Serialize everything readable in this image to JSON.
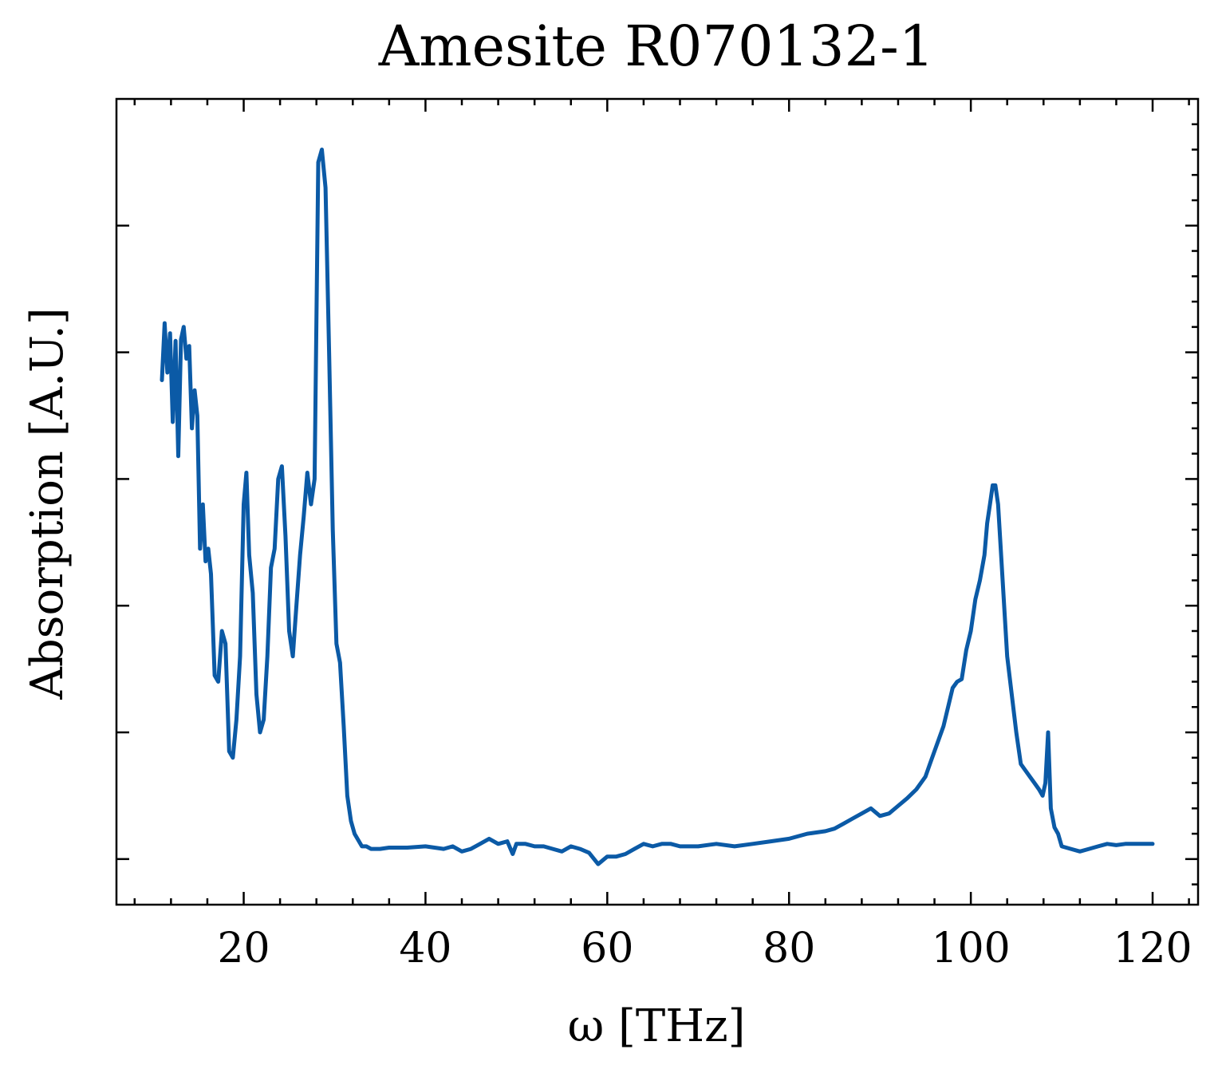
{
  "chart_data": {
    "type": "line",
    "title": "Amesite R070132-1",
    "xlabel": "ω [THz]",
    "ylabel": "Absorption [A.U.]",
    "xlim": [
      6,
      125
    ],
    "ylim": [
      -0.036,
      0.6
    ],
    "x_ticks": [
      20,
      40,
      60,
      80,
      100,
      120
    ],
    "x_tick_labels": [
      "20",
      "40",
      "60",
      "80",
      "100",
      "120"
    ],
    "x_minor_step": 4,
    "y_ticks": [
      0,
      0.1,
      0.2,
      0.3,
      0.4,
      0.5
    ],
    "y_tick_labels": [
      "",
      "",
      "",
      "",
      "",
      ""
    ],
    "y_minor_step": 0.02,
    "grid": false,
    "legend": "none",
    "colors": {
      "line": "#0b5aa6"
    },
    "series": [
      {
        "x": [
          11.0,
          11.3,
          11.6,
          11.9,
          12.2,
          12.5,
          12.8,
          13.1,
          13.4,
          13.7,
          14.0,
          14.3,
          14.6,
          14.9,
          15.2,
          15.5,
          15.8,
          16.1,
          16.4,
          16.8,
          17.2,
          17.6,
          18.0,
          18.4,
          18.8,
          19.2,
          19.6,
          20.0,
          20.3,
          20.6,
          21.0,
          21.4,
          21.8,
          22.2,
          22.6,
          23.0,
          23.4,
          23.8,
          24.2,
          24.6,
          25.0,
          25.4,
          25.8,
          26.2,
          26.6,
          27.0,
          27.4,
          27.8,
          28.2,
          28.6,
          29.0,
          29.4,
          29.8,
          30.2,
          30.6,
          31.0,
          31.4,
          31.8,
          32.2,
          32.6,
          33.0,
          33.5,
          34.0,
          35.0,
          36.0,
          37.0,
          38.0,
          40.0,
          42.0,
          43.0,
          44.0,
          45.0,
          46.0,
          47.0,
          48.0,
          49.0,
          49.6,
          50.0,
          51.0,
          52.0,
          53.0,
          54.0,
          55.0,
          56.0,
          57.0,
          58.0,
          59.0,
          60.0,
          61.0,
          62.0,
          63.0,
          64.0,
          65.0,
          66.0,
          67.0,
          68.0,
          70.0,
          72.0,
          74.0,
          76.0,
          78.0,
          80.0,
          82.0,
          84.0,
          85.0,
          86.0,
          87.0,
          88.0,
          89.0,
          90.0,
          91.0,
          92.0,
          93.0,
          94.0,
          95.0,
          95.5,
          96.0,
          96.5,
          97.0,
          97.5,
          98.0,
          98.5,
          99.0,
          99.5,
          100.0,
          100.5,
          101.0,
          101.5,
          101.8,
          102.1,
          102.4,
          102.7,
          103.0,
          103.5,
          104.0,
          104.5,
          105.0,
          105.5,
          106.0,
          106.5,
          107.0,
          107.5,
          107.9,
          108.2,
          108.5,
          108.8,
          109.2,
          109.6,
          110.0,
          111.0,
          112.0,
          113.0,
          114.0,
          115.0,
          116.0,
          117.0,
          118.0,
          119.0,
          120.0
        ],
        "y": [
          0.378,
          0.423,
          0.384,
          0.415,
          0.345,
          0.409,
          0.318,
          0.41,
          0.42,
          0.395,
          0.405,
          0.34,
          0.37,
          0.35,
          0.245,
          0.28,
          0.235,
          0.245,
          0.225,
          0.145,
          0.14,
          0.18,
          0.17,
          0.085,
          0.08,
          0.11,
          0.16,
          0.28,
          0.305,
          0.24,
          0.21,
          0.13,
          0.1,
          0.11,
          0.16,
          0.23,
          0.245,
          0.3,
          0.31,
          0.255,
          0.18,
          0.16,
          0.2,
          0.24,
          0.27,
          0.305,
          0.28,
          0.3,
          0.55,
          0.56,
          0.53,
          0.4,
          0.26,
          0.17,
          0.155,
          0.105,
          0.05,
          0.03,
          0.02,
          0.015,
          0.01,
          0.01,
          0.008,
          0.008,
          0.009,
          0.009,
          0.009,
          0.01,
          0.008,
          0.01,
          0.006,
          0.008,
          0.012,
          0.016,
          0.012,
          0.014,
          0.004,
          0.012,
          0.012,
          0.01,
          0.01,
          0.008,
          0.006,
          0.01,
          0.008,
          0.005,
          -0.004,
          0.002,
          0.002,
          0.004,
          0.008,
          0.012,
          0.01,
          0.012,
          0.012,
          0.01,
          0.01,
          0.012,
          0.01,
          0.012,
          0.014,
          0.016,
          0.02,
          0.022,
          0.024,
          0.028,
          0.032,
          0.036,
          0.04,
          0.034,
          0.036,
          0.042,
          0.048,
          0.055,
          0.065,
          0.075,
          0.085,
          0.095,
          0.105,
          0.12,
          0.135,
          0.14,
          0.142,
          0.165,
          0.18,
          0.205,
          0.22,
          0.24,
          0.265,
          0.28,
          0.295,
          0.295,
          0.28,
          0.22,
          0.16,
          0.13,
          0.1,
          0.075,
          0.07,
          0.065,
          0.06,
          0.055,
          0.05,
          0.06,
          0.1,
          0.04,
          0.025,
          0.02,
          0.01,
          0.008,
          0.006,
          0.008,
          0.01,
          0.012,
          0.011,
          0.012,
          0.012,
          0.012,
          0.012
        ]
      }
    ]
  }
}
